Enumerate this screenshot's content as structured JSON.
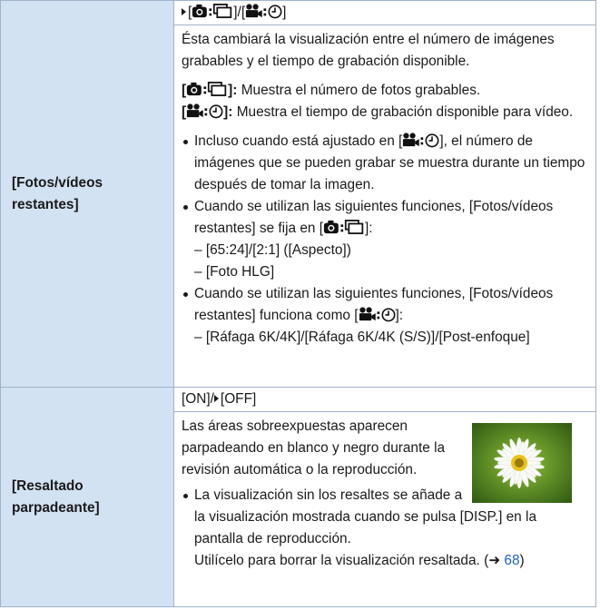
{
  "rows": [
    {
      "label": "[Fotos/vídeos restantes]",
      "setting_parts": [
        "[",
        "]/[",
        "]"
      ],
      "description": "Ésta cambiará la visualización entre el número de imágenes grabables y el tiempo de grabación disponible.",
      "options": [
        {
          "open": "[",
          "close": "]:",
          "text": "Muestra el número de fotos grabables."
        },
        {
          "open": "[",
          "close": "]:",
          "text": "Muestra el tiempo de grabación disponible para vídeo."
        }
      ],
      "notes": [
        {
          "parts": [
            "Incluso cuando está ajustado en [",
            "], el número de imágenes que se pueden grabar se muestra durante un tiempo después de tomar la imagen."
          ],
          "sub": []
        },
        {
          "parts": [
            "Cuando se utilizan las siguientes funciones, [Fotos/vídeos restantes] se fija en [",
            "]:"
          ],
          "sub": [
            "– [65:24]/[2:1] ([Aspecto])",
            "– [Foto HLG]"
          ]
        },
        {
          "parts": [
            "Cuando se utilizan las siguientes funciones, [Fotos/vídeos restantes] funciona como [",
            "]:"
          ],
          "sub": [
            "– [Ráfaga 6K/4K]/[Ráfaga 6K/4K (S/S)]/[Post-enfoque]"
          ]
        }
      ]
    },
    {
      "label": "[Resaltado parpadeante]",
      "setting_parts": [
        "[ON]/",
        "[OFF]"
      ],
      "description": "Las áreas sobreexpuestas aparecen parpadeando en blanco y negro durante la revisión automática o la reproducción.",
      "notes": [
        {
          "lines": [
            "La visualización sin los resaltes se añade a la visualización mostrada cuando se pulsa [DISP.] en la pantalla de reproducción.",
            "Utilícelo para borrar la visualización resaltada. (➜"
          ],
          "ref": "68",
          "close": ")"
        }
      ]
    }
  ]
}
